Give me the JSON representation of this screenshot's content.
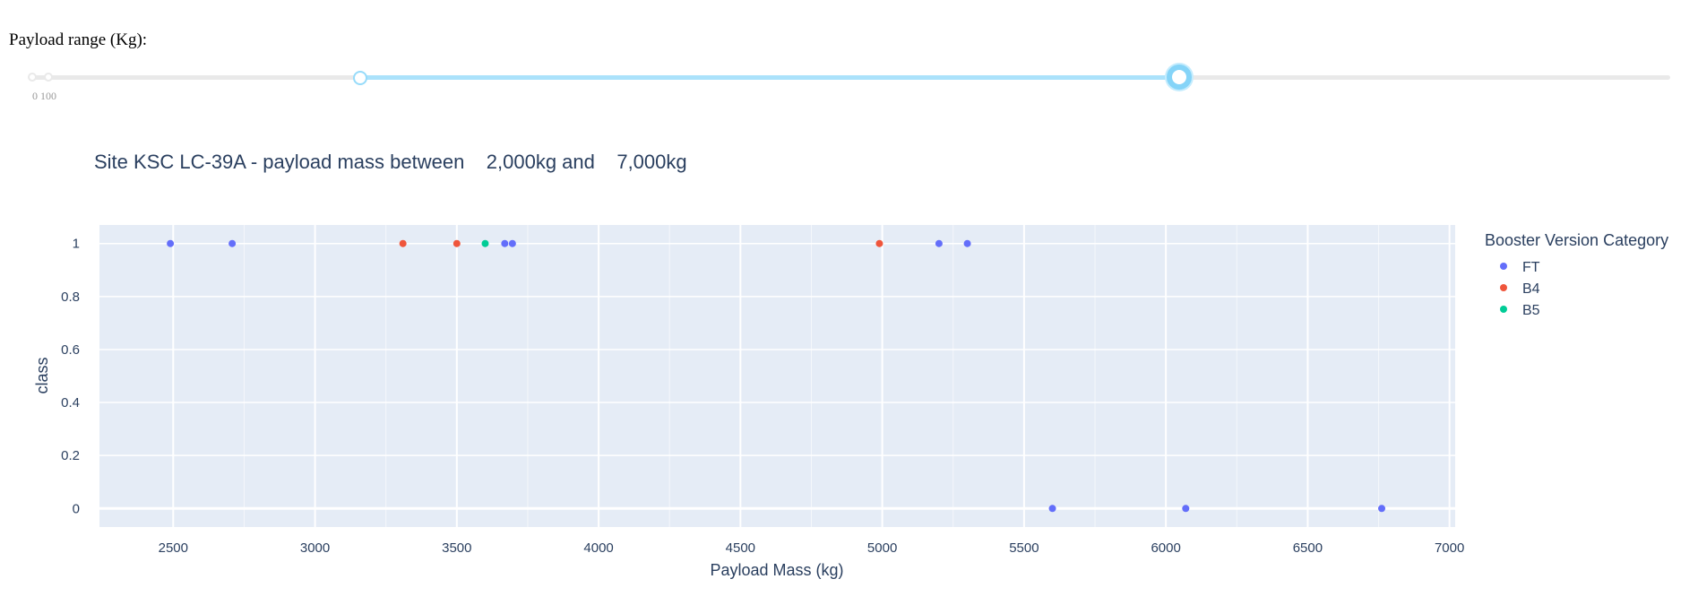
{
  "slider": {
    "label": "Payload range (Kg):",
    "min": 0,
    "max": 10000,
    "value": [
      2000,
      7000
    ],
    "marks_label": "0 100",
    "colors": {
      "rail": "#e9e9e9",
      "track": "#abe2fb",
      "handle_border": "#96dbfa"
    }
  },
  "chart_data": {
    "type": "scatter",
    "title": "Site KSC LC-39A - payload mass between    2,000kg and    7,000kg",
    "xlabel": "Payload Mass (kg)",
    "ylabel": "class",
    "xlim": [
      2240,
      7020
    ],
    "ylim": [
      -0.07,
      1.07
    ],
    "x_ticks": [
      2500,
      3000,
      3500,
      4000,
      4500,
      5000,
      5500,
      6000,
      6500,
      7000
    ],
    "y_ticks": [
      0,
      0.2,
      0.4,
      0.6,
      0.8,
      1
    ],
    "y_tick_labels": [
      "0",
      "0.2",
      "0.4",
      "0.6",
      "0.8",
      "1"
    ],
    "grid": true,
    "legend": {
      "title": "Booster Version Category",
      "position": "top-right"
    },
    "background": "#e5ecf6",
    "series": [
      {
        "name": "FT",
        "color": "#636efa",
        "points": [
          {
            "x": 2490,
            "y": 1
          },
          {
            "x": 2708,
            "y": 1
          },
          {
            "x": 3669,
            "y": 1
          },
          {
            "x": 3696,
            "y": 1
          },
          {
            "x": 5200,
            "y": 1
          },
          {
            "x": 5300,
            "y": 1
          },
          {
            "x": 5600,
            "y": 0
          },
          {
            "x": 6070,
            "y": 0
          },
          {
            "x": 6761,
            "y": 0
          }
        ]
      },
      {
        "name": "B4",
        "color": "#ef553b",
        "points": [
          {
            "x": 3310,
            "y": 1
          },
          {
            "x": 3500,
            "y": 1
          },
          {
            "x": 4990,
            "y": 1
          }
        ]
      },
      {
        "name": "B5",
        "color": "#00cc96",
        "points": [
          {
            "x": 3600,
            "y": 1
          }
        ]
      }
    ]
  }
}
